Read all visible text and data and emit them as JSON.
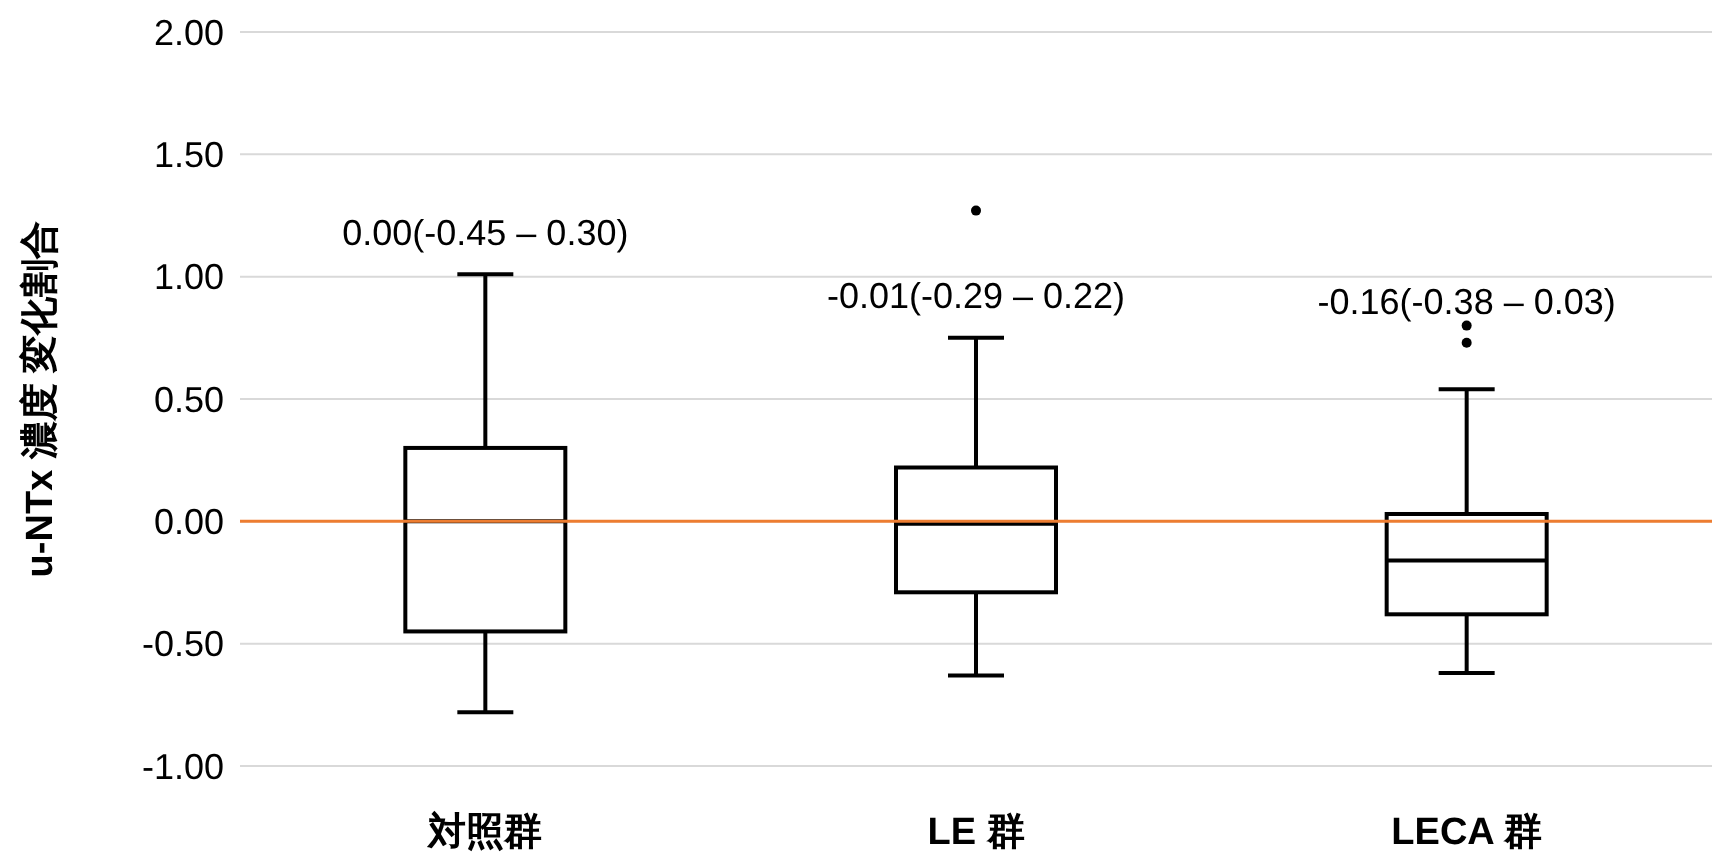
{
  "chart_data": {
    "type": "box",
    "ylabel": "u-NTx 濃度 変化割合",
    "categories": [
      "対照群",
      "LE 群",
      "LECA 群"
    ],
    "boxes": [
      {
        "low": -0.78,
        "q1": -0.45,
        "median": 0,
        "q3": 0.3,
        "high": 1.01
      },
      {
        "low": -0.63,
        "q1": -0.29,
        "median": -0.01,
        "q3": 0.22,
        "high": 0.75,
        "outliers": [
          1.27
        ]
      },
      {
        "low": -0.62,
        "q1": -0.38,
        "median": -0.16,
        "q3": 0.03,
        "high": 0.54,
        "outliers": [
          0.73,
          0.8
        ]
      }
    ],
    "color": "#000000",
    "ylim": [
      -1,
      2
    ],
    "yticks": [
      {
        "value": -1,
        "label": "-1.00"
      },
      {
        "value": -0.5,
        "label": "-0.50"
      },
      {
        "value": 0,
        "label": "0.00"
      },
      {
        "value": 0.5,
        "label": "0.50"
      },
      {
        "value": 1,
        "label": "1.00"
      },
      {
        "value": 1.5,
        "label": "1.50"
      },
      {
        "value": 2,
        "label": "2.00"
      }
    ],
    "grid": "y",
    "ref_lines": [
      {
        "axis": "y",
        "value": 0,
        "color": "#ed7d31"
      }
    ],
    "annotations": [
      "0.00(-0.45 – 0.30)",
      "-0.01(-0.29 – 0.22)",
      "-0.16(-0.38 – 0.03)"
    ]
  }
}
